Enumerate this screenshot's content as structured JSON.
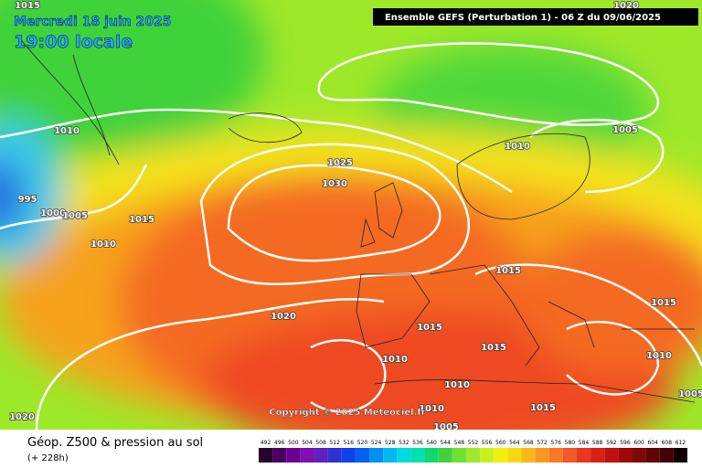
{
  "header": {
    "date": "Mercredi 18 juin 2025",
    "time": "19:00 locale",
    "model": "Ensemble GEFS  (Perturbation 1)  -  06 Z du 09/06/2025"
  },
  "copyright": "Copyright © 2025 Meteociel.fr",
  "footer": {
    "title": "Géop. Z500 & pression au sol",
    "lead": "(+ 228h)"
  },
  "isobar_labels": [
    "1015",
    "1010",
    "995",
    "1000",
    "1005",
    "1015",
    "1010",
    "1025",
    "1030",
    "1020",
    "1015",
    "1015",
    "1015",
    "1010",
    "1010",
    "1010",
    "1005",
    "1015",
    "1010",
    "1015",
    "1005",
    "1010",
    "1005",
    "1020",
    "1020"
  ],
  "legend": {
    "ticks": [
      "492",
      "496",
      "500",
      "504",
      "508",
      "512",
      "516",
      "520",
      "524",
      "528",
      "532",
      "536",
      "540",
      "544",
      "548",
      "552",
      "556",
      "560",
      "564",
      "568",
      "572",
      "576",
      "580",
      "584",
      "588",
      "592",
      "596",
      "600",
      "604",
      "608",
      "612"
    ]
  }
}
